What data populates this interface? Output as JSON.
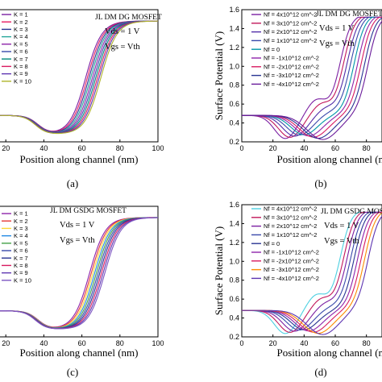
{
  "chart_data": [
    {
      "panel": "(a)",
      "type": "line",
      "title": "JL DM DG MOSFET",
      "conditions": [
        "Vds = 1 V",
        "Vgs = Vth"
      ],
      "xlabel": "Position along channel (nm)",
      "ylabel": "",
      "xlim": [
        0,
        100
      ],
      "ylim": [
        0.2,
        1.6
      ],
      "xticks": [
        20,
        40,
        60,
        80,
        100
      ],
      "yticks": [],
      "legend_position": "top-left",
      "series": [
        {
          "name": "K = 1",
          "color": "#7b1fa2"
        },
        {
          "name": "K = 2",
          "color": "#e91e63"
        },
        {
          "name": "K = 3",
          "color": "#283593"
        },
        {
          "name": "K = 4",
          "color": "#26a69a"
        },
        {
          "name": "K = 5",
          "color": "#8e24aa"
        },
        {
          "name": "K = 6",
          "color": "#3949ab"
        },
        {
          "name": "K = 7",
          "color": "#00897b"
        },
        {
          "name": "K = 8",
          "color": "#d81b60"
        },
        {
          "name": "K = 9",
          "color": "#5e35b1"
        },
        {
          "name": "K = 10",
          "color": "#afb42b"
        }
      ]
    },
    {
      "panel": "(b)",
      "type": "line",
      "title": "JL DM DG MOSFET",
      "conditions": [
        "Vds = 1 V",
        "Vgs = Vth"
      ],
      "xlabel": "Position along channel (nm)",
      "ylabel": "Surface Potential (V)",
      "xlim": [
        0,
        90
      ],
      "ylim": [
        0.2,
        1.6
      ],
      "xticks": [
        0,
        20,
        40,
        60,
        80
      ],
      "yticks": [
        0.2,
        0.4,
        0.6,
        0.8,
        1.0,
        1.2,
        1.4,
        1.6
      ],
      "legend_position": "top-left",
      "series": [
        {
          "name": "Nf = 4x10^12 cm^-2",
          "color": "#7b1fa2"
        },
        {
          "name": "Nf = 3x10^12 cm^-2",
          "color": "#c2185b"
        },
        {
          "name": "Nf = 2x10^12 cm^-2",
          "color": "#512da8"
        },
        {
          "name": "Nf = 1x10^12 cm^-2",
          "color": "#3949ab"
        },
        {
          "name": "Nf = 0",
          "color": "#0097a7"
        },
        {
          "name": "Nf = -1x10^12 cm^-2",
          "color": "#8e24aa"
        },
        {
          "name": "Nf = -2x10^12 cm^-2",
          "color": "#d81b60"
        },
        {
          "name": "Nf = -3x10^12 cm^-2",
          "color": "#283593"
        },
        {
          "name": "Nf = -4x10^12 cm^-2",
          "color": "#6a1b9a"
        }
      ]
    },
    {
      "panel": "(c)",
      "type": "line",
      "title": "JL DM GSDG MOSFET",
      "conditions": [
        "Vds = 1 V",
        "Vgs = Vth"
      ],
      "xlabel": "Position along channel (nm)",
      "ylabel": "",
      "xlim": [
        0,
        100
      ],
      "ylim": [
        0.2,
        1.6
      ],
      "xticks": [
        20,
        40,
        60,
        80,
        100
      ],
      "yticks": [],
      "legend_position": "top-left",
      "series": [
        {
          "name": "K = 1",
          "color": "#8e24aa"
        },
        {
          "name": "K = 2",
          "color": "#e53935"
        },
        {
          "name": "K = 3",
          "color": "#fdd835"
        },
        {
          "name": "K = 4",
          "color": "#1e88e5"
        },
        {
          "name": "K = 5",
          "color": "#43a047"
        },
        {
          "name": "K = 6",
          "color": "#3949ab"
        },
        {
          "name": "K = 7",
          "color": "#283593"
        },
        {
          "name": "K = 8",
          "color": "#d81b60"
        },
        {
          "name": "K = 9",
          "color": "#5e35b1"
        },
        {
          "name": "K = 10",
          "color": "#7e57c2"
        }
      ]
    },
    {
      "panel": "(d)",
      "type": "line",
      "title": "JL DM GSDG MOSFET",
      "conditions": [
        "Vds = 1 V",
        "Vgs = Vth"
      ],
      "xlabel": "Position along channel (nm)",
      "ylabel": "Surface Potential (V)",
      "xlim": [
        0,
        90
      ],
      "ylim": [
        0.2,
        1.6
      ],
      "xticks": [
        0,
        20,
        40,
        60,
        80
      ],
      "yticks": [
        0.2,
        0.4,
        0.6,
        0.8,
        1.0,
        1.2,
        1.4,
        1.6
      ],
      "legend_position": "top-left",
      "series": [
        {
          "name": "Nf = 4x10^12 cm^-2",
          "color": "#4dd0e1"
        },
        {
          "name": "Nf = 3x10^12 cm^-2",
          "color": "#c2185b"
        },
        {
          "name": "Nf = 2x10^12 cm^-2",
          "color": "#7b1fa2"
        },
        {
          "name": "Nf = 1x10^12 cm^-2",
          "color": "#3949ab"
        },
        {
          "name": "Nf = 0",
          "color": "#283593"
        },
        {
          "name": "Nf = -1x10^12 cm^-2",
          "color": "#8e24aa"
        },
        {
          "name": "Nf = -2x10^12 cm^-2",
          "color": "#d81b60"
        },
        {
          "name": "Nf = -3x10^12 cm^-2",
          "color": "#fb8c00"
        },
        {
          "name": "Nf = -4x10^12 cm^-2",
          "color": "#5e35b1"
        }
      ]
    }
  ]
}
